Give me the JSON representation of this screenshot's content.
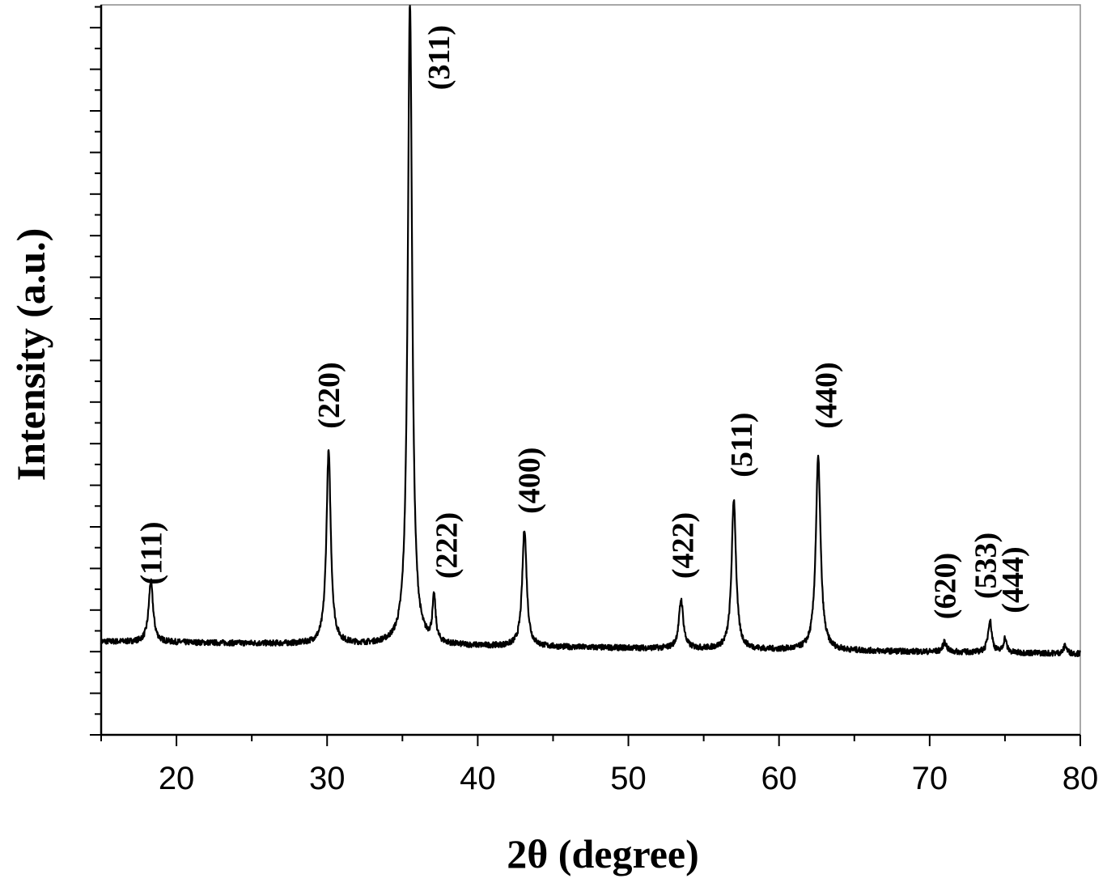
{
  "chart_data": {
    "type": "line",
    "title": "",
    "xlabel": "2θ (degree)",
    "ylabel": "Intensity (a.u.)",
    "xlim": [
      15,
      80
    ],
    "ylim": [
      -200,
      1600
    ],
    "x_ticks": [
      20,
      30,
      40,
      50,
      60,
      70,
      80
    ],
    "grid": false,
    "legend": "none",
    "baseline": {
      "start": 30,
      "end": 0
    },
    "series": [
      {
        "line_color": "#000000",
        "peaks": [
          {
            "x": 18.3,
            "height": 150,
            "width": 0.35
          },
          {
            "x": 30.1,
            "height": 475,
            "width": 0.35
          },
          {
            "x": 35.5,
            "height": 1590,
            "width": 0.35
          },
          {
            "x": 37.1,
            "height": 110,
            "width": 0.25
          },
          {
            "x": 43.1,
            "height": 290,
            "width": 0.35
          },
          {
            "x": 53.5,
            "height": 120,
            "width": 0.35
          },
          {
            "x": 57.0,
            "height": 370,
            "width": 0.35
          },
          {
            "x": 62.6,
            "height": 475,
            "width": 0.38
          },
          {
            "x": 71.0,
            "height": 25,
            "width": 0.3
          },
          {
            "x": 74.0,
            "height": 80,
            "width": 0.3
          },
          {
            "x": 75.0,
            "height": 35,
            "width": 0.25
          },
          {
            "x": 79.0,
            "height": 20,
            "width": 0.25
          }
        ]
      }
    ],
    "annotations": [
      {
        "label": "(111)",
        "x": 18.3,
        "y": 170
      },
      {
        "label": "(220)",
        "x": 30.1,
        "y": 555
      },
      {
        "label": "(311)",
        "x": 37.4,
        "y": 1390
      },
      {
        "label": "(222)",
        "x": 37.9,
        "y": 185
      },
      {
        "label": "(400)",
        "x": 43.4,
        "y": 345
      },
      {
        "label": "(422)",
        "x": 53.6,
        "y": 185
      },
      {
        "label": "(511)",
        "x": 57.5,
        "y": 435
      },
      {
        "label": "(440)",
        "x": 63.1,
        "y": 555
      },
      {
        "label": "(620)",
        "x": 71.0,
        "y": 85
      },
      {
        "label": "(533)",
        "x": 73.7,
        "y": 135
      },
      {
        "label": "(444)",
        "x": 75.5,
        "y": 100
      }
    ]
  }
}
